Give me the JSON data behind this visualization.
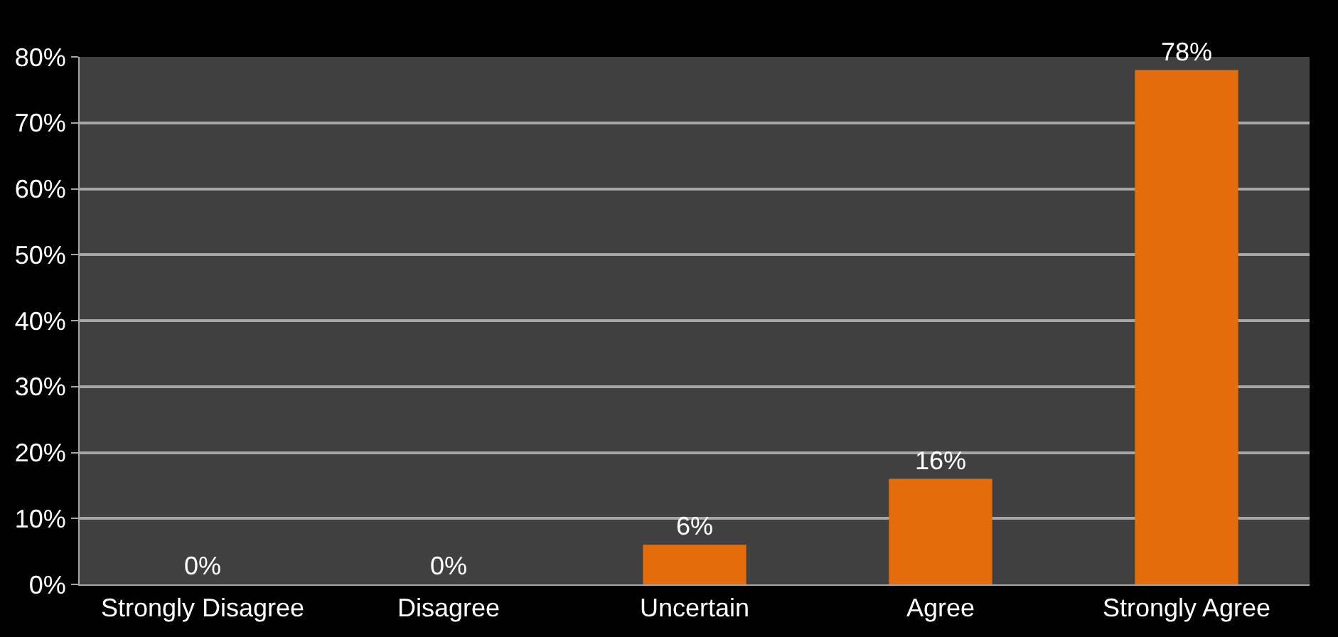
{
  "chart_data": {
    "type": "bar",
    "categories": [
      "Strongly Disagree",
      "Disagree",
      "Uncertain",
      "Agree",
      "Strongly Agree"
    ],
    "values": [
      0,
      0,
      6,
      16,
      78
    ],
    "value_labels": [
      "0%",
      "0%",
      "6%",
      "16%",
      "78%"
    ],
    "color": "#e46c0a",
    "ylim": [
      0,
      80
    ],
    "yticks": [
      {
        "value": 0,
        "label": "0%"
      },
      {
        "value": 10,
        "label": "10%"
      },
      {
        "value": 20,
        "label": "20%"
      },
      {
        "value": 30,
        "label": "30%"
      },
      {
        "value": 40,
        "label": "40%"
      },
      {
        "value": 50,
        "label": "50%"
      },
      {
        "value": 60,
        "label": "60%"
      },
      {
        "value": 70,
        "label": "70%"
      },
      {
        "value": 80,
        "label": "80%"
      }
    ],
    "grid": "y",
    "legend": false
  }
}
